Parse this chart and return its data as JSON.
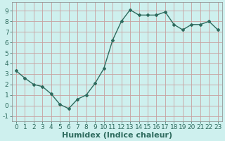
{
  "x": [
    0,
    1,
    2,
    3,
    4,
    5,
    6,
    7,
    8,
    9,
    10,
    11,
    12,
    13,
    14,
    15,
    16,
    17,
    18,
    19,
    20,
    21,
    22,
    23
  ],
  "y": [
    3.3,
    2.6,
    2.0,
    1.8,
    1.1,
    0.1,
    -0.3,
    0.6,
    1.0,
    2.1,
    3.5,
    6.2,
    8.0,
    9.1,
    8.6,
    8.6,
    8.6,
    8.9,
    7.7,
    7.2,
    7.7,
    7.7,
    8.0,
    7.2
  ],
  "line_color": "#2e6b5e",
  "marker": "D",
  "markersize": 2.0,
  "linewidth": 1.0,
  "bg_color": "#cef0ee",
  "grid_color": "#c8a0a0",
  "xlabel": "Humidex (Indice chaleur)",
  "xlabel_fontsize": 8,
  "xlabel_fontweight": "bold",
  "xlabel_color": "#2e6b5e",
  "yticks": [
    -1,
    0,
    1,
    2,
    3,
    4,
    5,
    6,
    7,
    8,
    9
  ],
  "xticks": [
    0,
    1,
    2,
    3,
    4,
    5,
    6,
    7,
    8,
    9,
    10,
    11,
    12,
    13,
    14,
    15,
    16,
    17,
    18,
    19,
    20,
    21,
    22,
    23
  ],
  "xtick_labels": [
    "0",
    "1",
    "2",
    "3",
    "4",
    "5",
    "6",
    "7",
    "8",
    "9",
    "10",
    "11",
    "12",
    "13",
    "14",
    "15",
    "16",
    "17",
    "18",
    "19",
    "20",
    "21",
    "22",
    "23"
  ],
  "ylim": [
    -1.5,
    9.8
  ],
  "xlim": [
    -0.5,
    23.5
  ],
  "tick_fontsize": 6.5,
  "tick_color": "#2e6b5e",
  "spine_color": "#8a8a8a"
}
